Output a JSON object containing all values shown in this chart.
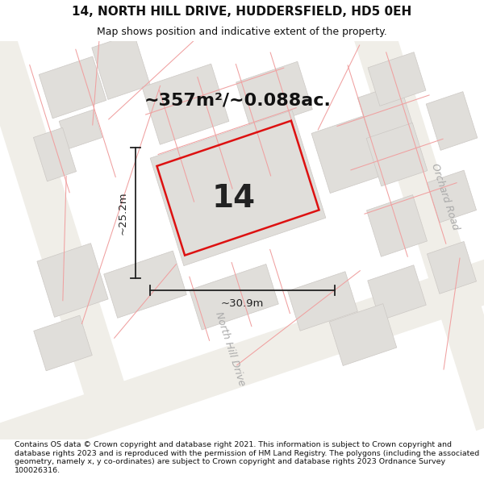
{
  "title": "14, NORTH HILL DRIVE, HUDDERSFIELD, HD5 0EH",
  "subtitle": "Map shows position and indicative extent of the property.",
  "area_text": "~357m²/~0.088ac.",
  "number_label": "14",
  "dim_width": "~30.9m",
  "dim_height": "~25.2m",
  "footer": "Contains OS data © Crown copyright and database right 2021. This information is subject to Crown copyright and database rights 2023 and is reproduced with the permission of HM Land Registry. The polygons (including the associated geometry, namely x, y co-ordinates) are subject to Crown copyright and database rights 2023 Ordnance Survey 100026316.",
  "map_bg": "#f5f4f2",
  "block_fill": "#e0deda",
  "block_edge": "#ccc8c4",
  "red_plot": "#dd1111",
  "dim_color": "#222222",
  "street_color": "#aaaaaa",
  "orchard_road": "Orchard Road",
  "north_hill_drive": "North Hill Drive",
  "title_size": 11,
  "subtitle_size": 9,
  "footer_size": 6.8,
  "area_size": 16,
  "number_size": 28,
  "dim_size": 9.5
}
